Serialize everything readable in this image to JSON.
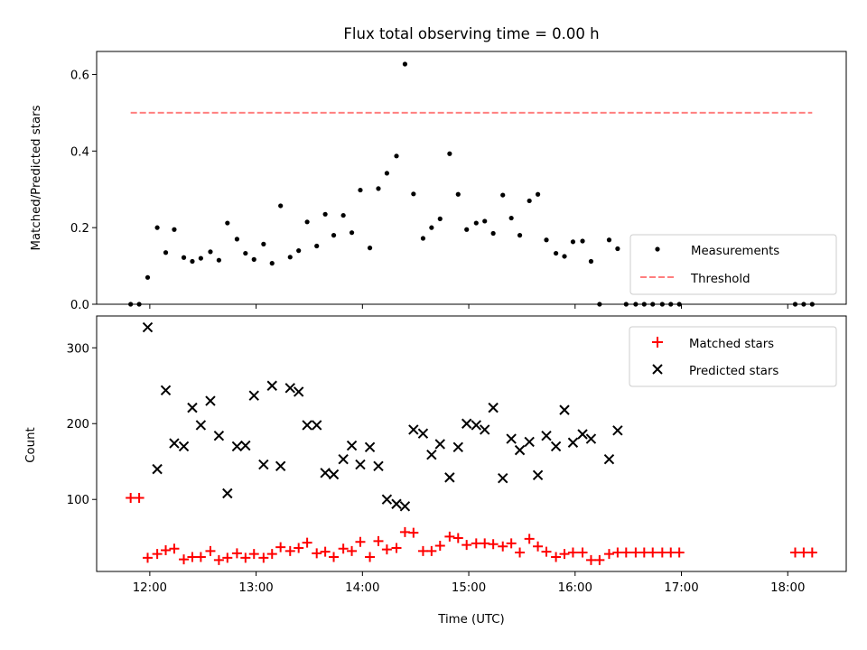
{
  "chart_data": [
    {
      "type": "scatter",
      "title": "Flux total observing time = 0.00 h",
      "xlabel": "",
      "ylabel": "Matched/Predicted stars",
      "xlim": [
        11.5,
        18.55
      ],
      "ylim": [
        0,
        0.66
      ],
      "yticks": [
        0.0,
        0.2,
        0.4,
        0.6
      ],
      "ytick_labels": [
        "0.0",
        "0.2",
        "0.4",
        "0.6"
      ],
      "legend_position": "lower right",
      "series": [
        {
          "name": "Measurements",
          "marker": "dot",
          "color": "#000000",
          "x": [
            11.82,
            11.9,
            11.98,
            12.07,
            12.15,
            12.23,
            12.32,
            12.4,
            12.48,
            12.57,
            12.65,
            12.73,
            12.82,
            12.9,
            12.98,
            13.07,
            13.15,
            13.23,
            13.32,
            13.4,
            13.48,
            13.57,
            13.65,
            13.73,
            13.82,
            13.9,
            13.98,
            14.07,
            14.15,
            14.23,
            14.32,
            14.4,
            14.48,
            14.57,
            14.65,
            14.73,
            14.82,
            14.9,
            14.98,
            15.07,
            15.15,
            15.23,
            15.32,
            15.4,
            15.48,
            15.57,
            15.65,
            15.73,
            15.82,
            15.9,
            15.98,
            16.07,
            16.15,
            16.23,
            16.32,
            16.4,
            16.48,
            16.57,
            16.65,
            16.73,
            16.82,
            16.9,
            16.98,
            18.07,
            18.15,
            18.23
          ],
          "y": [
            0.0,
            0.0,
            0.07,
            0.2,
            0.135,
            0.195,
            0.122,
            0.112,
            0.12,
            0.137,
            0.115,
            0.212,
            0.17,
            0.133,
            0.117,
            0.157,
            0.107,
            0.257,
            0.123,
            0.14,
            0.215,
            0.152,
            0.235,
            0.18,
            0.232,
            0.187,
            0.298,
            0.147,
            0.302,
            0.342,
            0.387,
            0.627,
            0.288,
            0.172,
            0.2,
            0.223,
            0.393,
            0.287,
            0.195,
            0.212,
            0.217,
            0.185,
            0.285,
            0.225,
            0.18,
            0.27,
            0.287,
            0.168,
            0.133,
            0.125,
            0.163,
            0.165,
            0.112,
            0.0,
            0.168,
            0.145,
            0.0,
            0.0,
            0.0,
            0.0,
            0.0,
            0.0,
            0.0,
            0.0,
            0.0,
            0.0
          ]
        },
        {
          "name": "Threshold",
          "style": "dashed",
          "color": "#ff7f7f",
          "x": [
            11.82,
            18.23
          ],
          "y": [
            0.5,
            0.5
          ]
        }
      ]
    },
    {
      "type": "scatter",
      "title": "",
      "xlabel": "Time (UTC)",
      "ylabel": "Count",
      "xlim": [
        11.5,
        18.55
      ],
      "ylim": [
        5,
        342
      ],
      "xticks": [
        12,
        13,
        14,
        15,
        16,
        17,
        18
      ],
      "xtick_labels": [
        "12:00",
        "13:00",
        "14:00",
        "15:00",
        "16:00",
        "17:00",
        "18:00"
      ],
      "yticks": [
        100,
        200,
        300
      ],
      "ytick_labels": [
        "100",
        "200",
        "300"
      ],
      "legend_position": "upper right",
      "series": [
        {
          "name": "Matched stars",
          "marker": "plus",
          "color": "#ff0000",
          "x": [
            11.82,
            11.9,
            11.98,
            12.07,
            12.15,
            12.23,
            12.32,
            12.4,
            12.48,
            12.57,
            12.65,
            12.73,
            12.82,
            12.9,
            12.98,
            13.07,
            13.15,
            13.23,
            13.32,
            13.4,
            13.48,
            13.57,
            13.65,
            13.73,
            13.82,
            13.9,
            13.98,
            14.07,
            14.15,
            14.23,
            14.32,
            14.4,
            14.48,
            14.57,
            14.65,
            14.73,
            14.82,
            14.9,
            14.98,
            15.07,
            15.15,
            15.23,
            15.32,
            15.4,
            15.48,
            15.57,
            15.65,
            15.73,
            15.82,
            15.9,
            15.98,
            16.07,
            16.15,
            16.23,
            16.32,
            16.4,
            16.48,
            16.57,
            16.65,
            16.73,
            16.82,
            16.9,
            16.98,
            18.07,
            18.15,
            18.23
          ],
          "y": [
            102,
            102,
            23,
            28,
            33,
            35,
            21,
            24,
            24,
            32,
            20,
            23,
            29,
            23,
            28,
            23,
            28,
            37,
            32,
            36,
            43,
            29,
            31,
            24,
            35,
            32,
            44,
            24,
            45,
            34,
            36,
            57,
            56,
            32,
            32,
            39,
            51,
            49,
            40,
            42,
            42,
            41,
            38,
            42,
            30,
            48,
            38,
            31,
            24,
            28,
            30,
            30,
            20,
            20,
            28,
            30,
            30,
            30,
            30,
            30,
            30,
            30,
            30,
            30,
            30,
            30
          ]
        },
        {
          "name": "Predicted stars",
          "marker": "x",
          "color": "#000000",
          "x": [
            11.98,
            12.07,
            12.15,
            12.23,
            12.32,
            12.4,
            12.48,
            12.57,
            12.65,
            12.73,
            12.82,
            12.9,
            12.98,
            13.07,
            13.15,
            13.23,
            13.32,
            13.4,
            13.48,
            13.57,
            13.65,
            13.73,
            13.82,
            13.9,
            13.98,
            14.07,
            14.15,
            14.23,
            14.32,
            14.4,
            14.48,
            14.57,
            14.65,
            14.73,
            14.82,
            14.9,
            14.98,
            15.07,
            15.15,
            15.23,
            15.32,
            15.4,
            15.48,
            15.57,
            15.65,
            15.73,
            15.82,
            15.9,
            15.98,
            16.07,
            16.15,
            16.32,
            16.4
          ],
          "y": [
            327,
            140,
            244,
            174,
            170,
            221,
            198,
            230,
            184,
            108,
            170,
            171,
            237,
            146,
            250,
            144,
            247,
            242,
            198,
            198,
            135,
            133,
            153,
            171,
            146,
            169,
            144,
            100,
            94,
            91,
            192,
            187,
            159,
            173,
            129,
            169,
            200,
            198,
            192,
            221,
            128,
            180,
            165,
            176,
            132,
            184,
            170,
            218,
            175,
            186,
            180,
            153,
            191
          ]
        }
      ]
    }
  ]
}
